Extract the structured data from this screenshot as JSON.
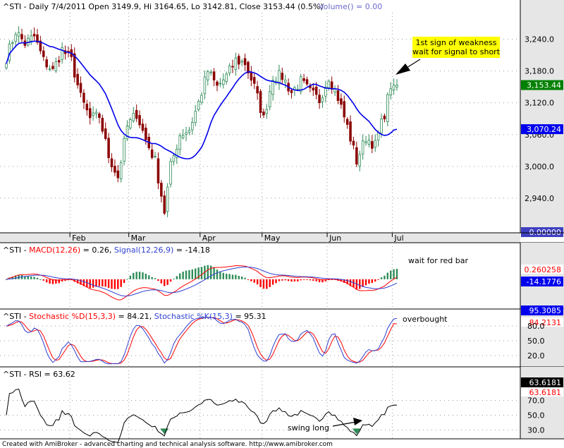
{
  "colors": {
    "background": "#ffffff",
    "axis_bg": "#e6e6e6",
    "grid": "#9a9a9a",
    "up_candle": "#2e8b57",
    "down_candle": "#8b0000",
    "moving_average": "#0000ee",
    "macd_line": "#ff0000",
    "signal_line": "#2f3fd0",
    "stoch_d": "#ff0000",
    "stoch_k": "#2f3fd0",
    "rsi_line": "#000000",
    "rsi_marker": "#2e8b57",
    "note_bg": "#ffff00"
  },
  "footer": "Created with AmiBroker - advanced charting and technical analysis software. http://www.amibroker.com",
  "chart_data": [
    {
      "type": "candlestick",
      "panel": "price",
      "title": "^STI - Daily 7/4/2011 Open 3149.9, Hi 3164.65, Lo 3142.81, Close 3153.44 (0.5%)",
      "volume_label": "Volume() = 0.00",
      "ylim": [
        2880,
        3290
      ],
      "y_ticks": [
        2940,
        3000,
        3060,
        3120,
        3180,
        3240
      ],
      "y_tick_labels": [
        "2,940.0",
        "3,000.0",
        "3,060.0",
        "3,120.0",
        "3,180.0",
        "3,240.0"
      ],
      "month_labels": [
        "Feb",
        "Mar",
        "Apr",
        "May",
        "Jun",
        "Jul"
      ],
      "month_start_index": [
        21,
        40,
        63,
        83,
        104,
        125
      ],
      "bar_count": 127,
      "badges": [
        {
          "label": "3,153.44",
          "value": 3153.44,
          "color": "#008000"
        },
        {
          "label": "3,070.24",
          "value": 3070.24,
          "color": "#0000ee"
        },
        {
          "label": "0.00000",
          "value": 0,
          "color": "#4040c0"
        }
      ],
      "annotation": {
        "lines": [
          "1st sign of weakness",
          "wait for signal to short"
        ],
        "arrow_to_index": 124
      },
      "close_keypoints": [
        [
          0,
          3205
        ],
        [
          3,
          3255
        ],
        [
          6,
          3232
        ],
        [
          9,
          3245
        ],
        [
          12,
          3200
        ],
        [
          15,
          3180
        ],
        [
          18,
          3220
        ],
        [
          21,
          3200
        ],
        [
          24,
          3130
        ],
        [
          27,
          3090
        ],
        [
          30,
          3095
        ],
        [
          33,
          3020
        ],
        [
          36,
          2980
        ],
        [
          39,
          3075
        ],
        [
          42,
          3100
        ],
        [
          45,
          3050
        ],
        [
          48,
          3010
        ],
        [
          51,
          2915
        ],
        [
          53,
          3000
        ],
        [
          56,
          3060
        ],
        [
          59,
          3070
        ],
        [
          62,
          3120
        ],
        [
          65,
          3180
        ],
        [
          68,
          3150
        ],
        [
          71,
          3170
        ],
        [
          74,
          3200
        ],
        [
          77,
          3195
        ],
        [
          80,
          3150
        ],
        [
          83,
          3090
        ],
        [
          86,
          3170
        ],
        [
          89,
          3170
        ],
        [
          92,
          3140
        ],
        [
          95,
          3160
        ],
        [
          98,
          3140
        ],
        [
          101,
          3125
        ],
        [
          104,
          3170
        ],
        [
          107,
          3130
        ],
        [
          110,
          3075
        ],
        [
          113,
          3010
        ],
        [
          116,
          3055
        ],
        [
          119,
          3040
        ],
        [
          122,
          3100
        ],
        [
          124,
          3153.44
        ],
        [
          126,
          3153.44
        ]
      ]
    },
    {
      "type": "line",
      "panel": "macd",
      "title_prefix": "^STI - ",
      "series": [
        {
          "name": "MACD(12,26)",
          "value_label": "0.26",
          "badge": "0.260258"
        },
        {
          "name": "Signal(12,26,9)",
          "value_label": "-14.18",
          "badge": "-14.1776"
        }
      ],
      "histogram": "MACD - Signal",
      "annotation": "wait for red bar"
    },
    {
      "type": "line",
      "panel": "stochastic",
      "title_prefix": "^STI - ",
      "series": [
        {
          "name": "Stochastic %D(15,3,3)",
          "value_label": "84.21",
          "badge": "84.2131"
        },
        {
          "name": "Stochastic %K(15,3)",
          "value_label": "95.31",
          "badge": "95.3085"
        }
      ],
      "ylim": [
        0,
        100
      ],
      "y_ticks": [
        20,
        50,
        80
      ],
      "y_tick_labels": [
        "20.0",
        "50.0",
        "80.0"
      ],
      "annotation": "overbought"
    },
    {
      "type": "line",
      "panel": "rsi",
      "title": "^STI - RSI = 63.62",
      "badges": [
        "63.6181",
        "63.6181"
      ],
      "ylim": [
        20,
        100
      ],
      "y_ticks": [
        30,
        50,
        70
      ],
      "y_tick_labels": [
        "30.0",
        "50.0",
        "70.0"
      ],
      "annotation": "swing long"
    }
  ]
}
